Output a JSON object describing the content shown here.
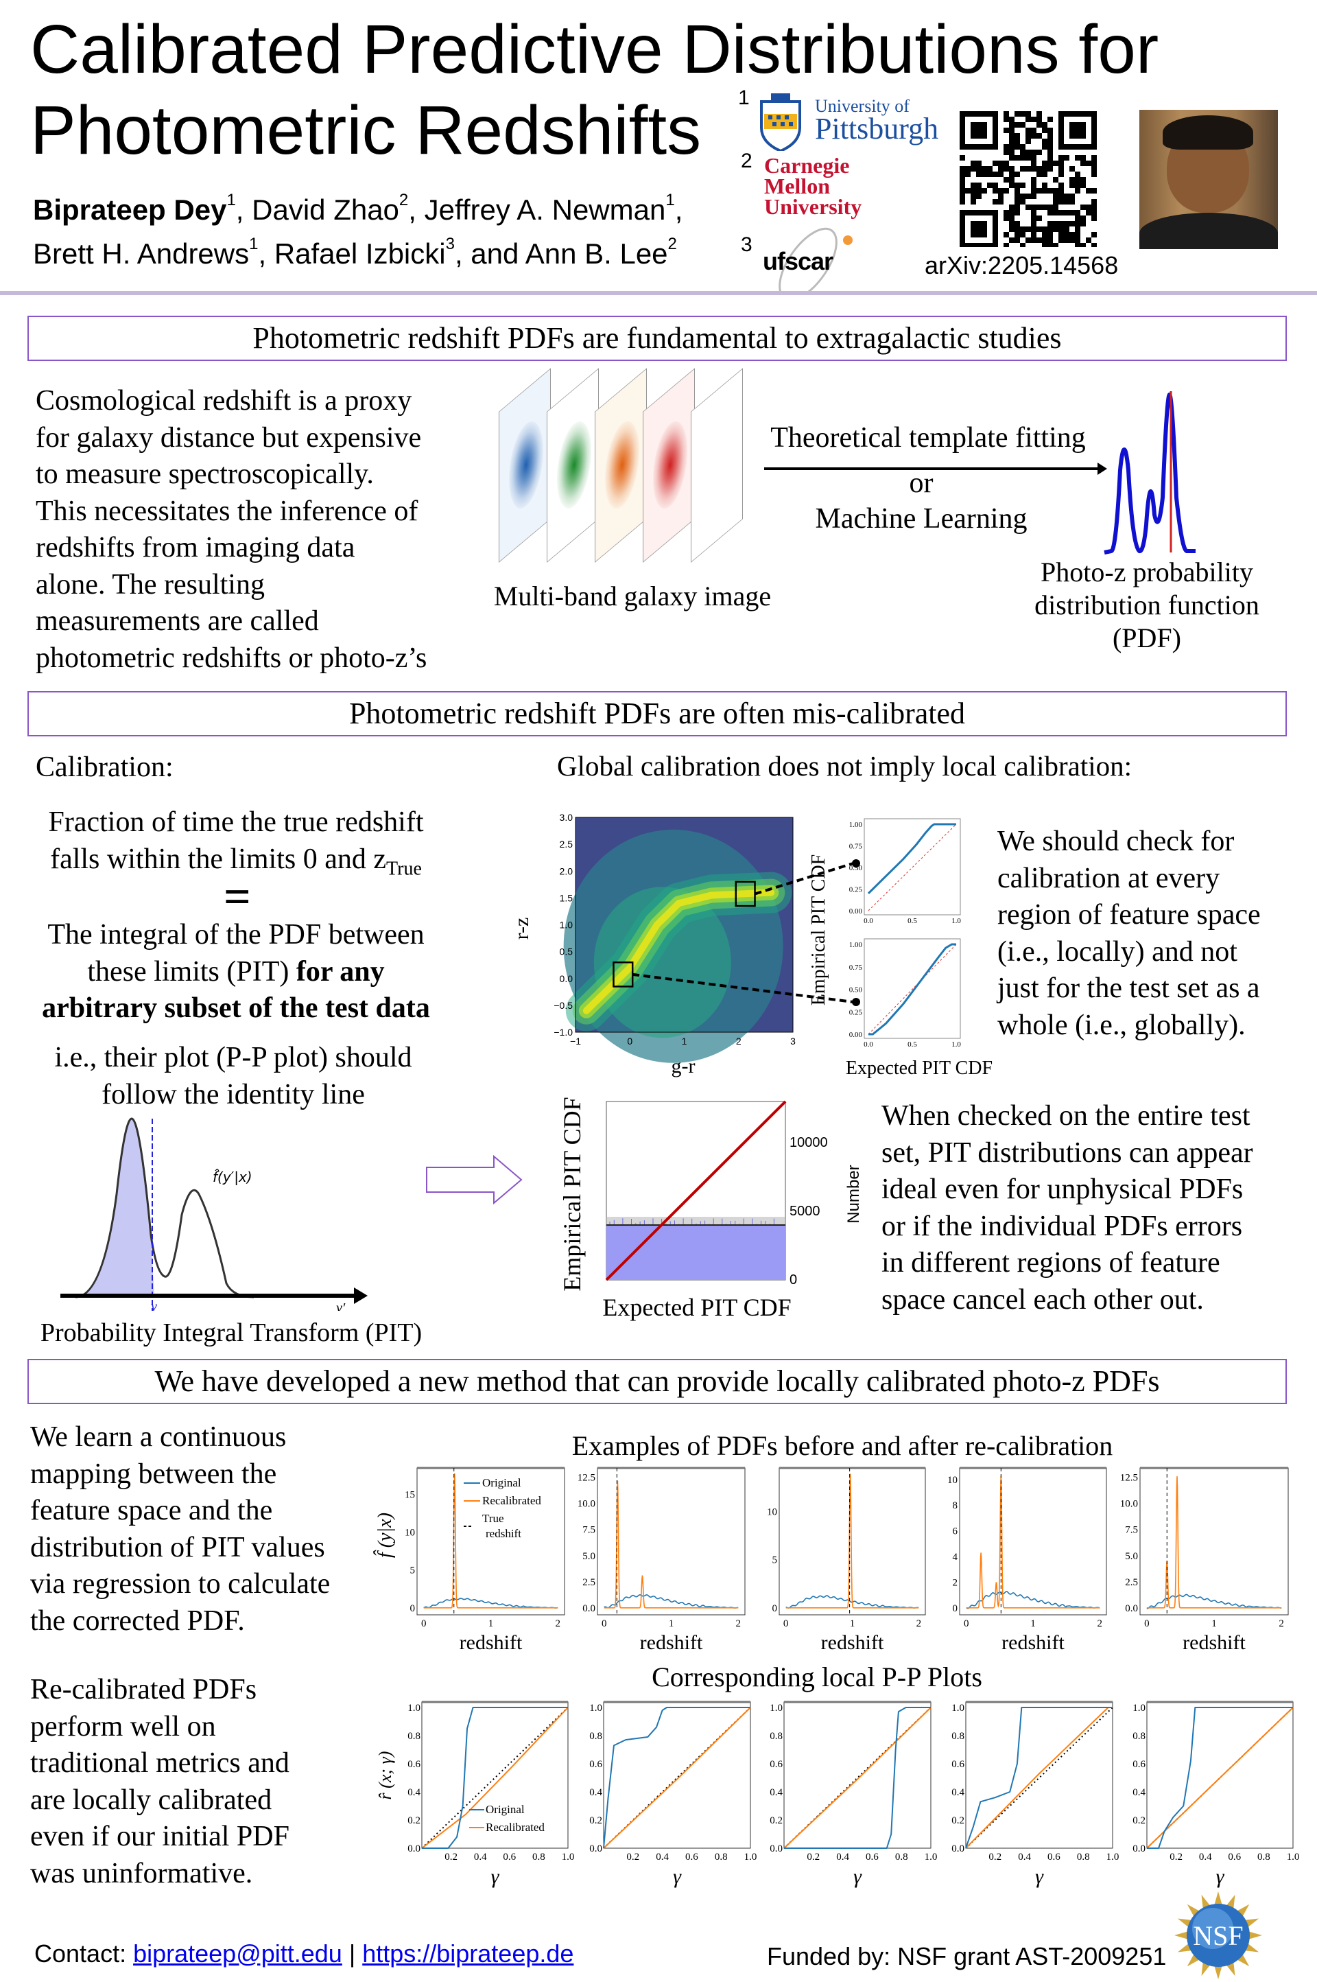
{
  "header": {
    "title_line1": "Calibrated Predictive Distributions for",
    "title_line2": "Photometric Redshifts",
    "authors_line1": [
      {
        "name": "Biprateep Dey",
        "aff": "1",
        "sep": ", "
      },
      {
        "name": "David Zhao",
        "aff": "2",
        "sep": ", "
      },
      {
        "name": "Jeffrey A. Newman",
        "aff": "1",
        "sep": ","
      }
    ],
    "authors_line2": [
      {
        "name": "Brett H. Andrews",
        "aff": "1",
        "sep": ", "
      },
      {
        "name": "Rafael Izbicki",
        "aff": "3",
        "sep": ", and "
      },
      {
        "name": "Ann B. Lee",
        "aff": "2",
        "sep": ""
      }
    ],
    "affiliations": [
      {
        "num": "1",
        "logo_text": [
          "University of",
          "Pittsburgh"
        ]
      },
      {
        "num": "2",
        "logo_text": [
          "Carnegie",
          "Mellon",
          "University"
        ]
      },
      {
        "num": "3",
        "logo_text": [
          "ufscar"
        ]
      }
    ],
    "arxiv": "arXiv:2205.14568",
    "colors": {
      "pitt": "#1c4fa0",
      "cmu": "#c41230",
      "rule": "#c6b8d8",
      "section_border": "#8a55c8"
    }
  },
  "section1": {
    "heading": "Photometric redshift PDFs are fundamental to extragalactic studies",
    "text_lines": [
      "Cosmological redshift is a proxy",
      "for galaxy distance but expensive",
      "to measure spectroscopically.",
      "This necessitates the inference of",
      "redshifts from imaging data",
      "alone. The resulting",
      "measurements are called",
      "photometric redshifts or photo-z’s"
    ],
    "galaxy_caption": "Multi-band galaxy image",
    "method_top": "Theoretical template fitting",
    "method_or": "or",
    "method_bottom": "Machine Learning",
    "pdf_caption": [
      "Photo-z probability",
      "distribution function",
      "(PDF)"
    ]
  },
  "section2": {
    "heading": "Photometric redshift PDFs are often mis-calibrated",
    "calibration_label": "Calibration:",
    "fraction_lines": [
      "Fraction of time the true redshift",
      "falls within the limits 0 and z",
      "True"
    ],
    "equals": "=",
    "integral_lines": [
      "The integral of the PDF between",
      "these limits (PIT) ",
      "for any",
      "arbitrary subset of the test data"
    ],
    "pp_lines": [
      "i.e., their plot (P-P plot) should",
      "follow the identity line"
    ],
    "pit_labels": {
      "fhat": "f̂(y′|x)",
      "y": "y",
      "yprime": "y′"
    },
    "pit_caption": "Probability Integral Transform (PIT)",
    "global_title": "Global calibration does not imply local calibration:",
    "local_text": [
      "We should check for",
      "calibration at every",
      "region of feature space",
      "(i.e., locally) and not",
      "just for the test set as a",
      "whole (i.e., globally)."
    ],
    "global_text": [
      "When checked on the entire test",
      "set, PIT distributions can appear",
      "ideal even for unphysical PDFs",
      "or if the individual PDFs errors",
      "in different regions of feature",
      "space cancel each other out."
    ]
  },
  "section3": {
    "heading": "We have developed a new method that can provide locally calibrated photo-z PDFs",
    "para1": [
      "We learn a continuous",
      "mapping between the",
      "feature space and the",
      "distribution of PIT values",
      "via regression to calculate",
      "the corrected PDF."
    ],
    "para2": [
      "Re-calibrated PDFs",
      "perform well on",
      "traditional metrics and",
      "are locally calibrated",
      "even if our initial PDF",
      "was uninformative."
    ],
    "pdf_title": "Examples of PDFs before and after re-calibration",
    "pp_title": "Corresponding local P-P Plots"
  },
  "footer": {
    "contact_label": "Contact: ",
    "email": "biprateep@pitt.edu",
    "separator": " | ",
    "website": "https://biprateep.de",
    "funding": "Funded by: NSF grant AST-2009251",
    "nsf_logo_text": "NSF"
  },
  "chart_data": [
    {
      "id": "color-density",
      "type": "heatmap",
      "xlabel": "g-r",
      "ylabel": "r-z",
      "xlim": [
        -1,
        3
      ],
      "ylim": [
        -1,
        3
      ],
      "xticks": [
        "−1",
        "0",
        "1",
        "2",
        "3"
      ],
      "yticks": [
        "−1.0",
        "−0.5",
        "0.0",
        "0.5",
        "1.0",
        "1.5",
        "2.0",
        "2.5",
        "3.0"
      ],
      "ridge": [
        [
          -0.8,
          -0.6
        ],
        [
          0.0,
          0.2
        ],
        [
          0.5,
          1.0
        ],
        [
          0.9,
          1.4
        ],
        [
          1.5,
          1.55
        ],
        [
          2.6,
          1.6
        ]
      ],
      "regions": [
        {
          "x": [
            -0.3,
            0.05
          ],
          "y": [
            -0.15,
            0.3
          ]
        },
        {
          "x": [
            1.95,
            2.3
          ],
          "y": [
            1.35,
            1.8
          ]
        }
      ],
      "colors": {
        "low": "#3e4a89",
        "mid": "#21918c",
        "high": "#d8e219"
      }
    },
    {
      "id": "local-pit",
      "type": "line",
      "xlabel": "Expected PIT CDF",
      "ylabel": "Empirical PIT CDF",
      "xticks": [
        "0.0",
        "0.5",
        "1.0"
      ],
      "yticks": [
        "0.00",
        "0.25",
        "0.50",
        "0.75",
        "1.00"
      ],
      "panels": [
        {
          "x": [
            0,
            0.2,
            0.4,
            0.55,
            0.65,
            0.72,
            0.75,
            1.0
          ],
          "y": [
            0.2,
            0.4,
            0.6,
            0.77,
            0.9,
            0.98,
            1.0,
            1.0
          ]
        },
        {
          "x": [
            0,
            0.05,
            0.2,
            0.4,
            0.6,
            0.8,
            0.88,
            0.95,
            1.0
          ],
          "y": [
            0,
            0,
            0.12,
            0.34,
            0.6,
            0.86,
            0.96,
            1.0,
            1.0
          ]
        }
      ]
    },
    {
      "id": "global-pit",
      "type": "bar",
      "xlabel": "Expected PIT CDF",
      "ylabel": "Empirical PIT CDF",
      "y2label": "Number",
      "y2ticks": [
        "0",
        "5000",
        "10000"
      ],
      "y2lim": [
        0,
        13000
      ],
      "histogram_level": 4000,
      "identity_color": "#c00000",
      "hist_color": "#9b9bf5"
    },
    {
      "id": "pdf-examples",
      "type": "line",
      "title": "Examples of PDFs before and after re-calibration",
      "xlabel": "redshift",
      "ylabel": "f̂ (y|x)",
      "xticks": [
        "0",
        "1",
        "2"
      ],
      "legend": [
        "Original",
        "Recalibrated",
        "True",
        "redshift"
      ],
      "colors": {
        "original": "#1f77b4",
        "recalibrated": "#ff7f0e"
      },
      "original_shape": {
        "x": [
          0,
          0.1,
          0.2,
          0.3,
          0.4,
          0.5,
          0.6,
          0.7,
          0.8,
          0.9,
          1.0,
          1.2,
          1.4,
          1.6,
          1.8,
          2.0
        ],
        "y": [
          0,
          0.15,
          0.5,
          0.9,
          1.1,
          1.15,
          1.2,
          1.1,
          0.95,
          0.8,
          0.65,
          0.4,
          0.2,
          0.1,
          0.04,
          0
        ]
      },
      "panels": [
        {
          "true_z": 0.45,
          "ymax": 18.5,
          "yticks": [
            "0",
            "5",
            "10",
            "15"
          ],
          "ytick_vals": [
            0,
            5,
            10,
            15
          ],
          "peaks": [
            [
              0.46,
              17.8
            ]
          ]
        },
        {
          "true_z": 0.19,
          "ymax": 13.4,
          "yticks": [
            "0.0",
            "2.5",
            "5.0",
            "7.5",
            "10.0",
            "12.5"
          ],
          "ytick_vals": [
            0,
            2.5,
            5,
            7.5,
            10,
            12.5
          ],
          "peaks": [
            [
              0.2,
              12.2
            ],
            [
              0.57,
              3.1
            ]
          ]
        },
        {
          "true_z": 0.96,
          "ymax": 14.5,
          "yticks": [
            "0",
            "5",
            "10"
          ],
          "ytick_vals": [
            0,
            5,
            10
          ],
          "peaks": [
            [
              0.97,
              13.9
            ]
          ]
        },
        {
          "true_z": 0.52,
          "ymax": 10.9,
          "yticks": [
            "0",
            "2",
            "4",
            "6",
            "8",
            "10"
          ],
          "ytick_vals": [
            0,
            2,
            4,
            6,
            8,
            10
          ],
          "peaks": [
            [
              0.22,
              4.3
            ],
            [
              0.45,
              2.0
            ],
            [
              0.52,
              10.3
            ]
          ]
        },
        {
          "true_z": 0.3,
          "ymax": 13.4,
          "yticks": [
            "0.0",
            "2.5",
            "5.0",
            "7.5",
            "10.0",
            "12.5"
          ],
          "ytick_vals": [
            0,
            2.5,
            5,
            7.5,
            10,
            12.5
          ],
          "peaks": [
            [
              0.3,
              4.5
            ],
            [
              0.45,
              12.6
            ]
          ]
        }
      ]
    },
    {
      "id": "local-pp",
      "type": "line",
      "title": "Corresponding local P-P Plots",
      "xlabel": "γ",
      "ylabel": "r̂ (x; γ)",
      "xticks": [
        "0.2",
        "0.4",
        "0.6",
        "0.8",
        "1.0"
      ],
      "yticks": [
        "0.0",
        "0.2",
        "0.4",
        "0.6",
        "0.8",
        "1.0"
      ],
      "legend": [
        "Original",
        "Recalibrated"
      ],
      "panels": [
        {
          "original": [
            [
              0,
              0
            ],
            [
              0.18,
              0
            ],
            [
              0.24,
              0.08
            ],
            [
              0.28,
              0.3
            ],
            [
              0.31,
              0.85
            ],
            [
              0.35,
              1
            ],
            [
              1,
              1
            ]
          ],
          "recalibrated": [
            [
              0,
              0
            ],
            [
              0.3,
              0.24
            ],
            [
              0.6,
              0.56
            ],
            [
              1,
              1
            ]
          ]
        },
        {
          "original": [
            [
              0,
              0
            ],
            [
              0.03,
              0.35
            ],
            [
              0.07,
              0.73
            ],
            [
              0.15,
              0.77
            ],
            [
              0.3,
              0.79
            ],
            [
              0.36,
              0.86
            ],
            [
              0.4,
              0.98
            ],
            [
              0.43,
              1
            ],
            [
              1,
              1
            ]
          ],
          "recalibrated": [
            [
              0,
              0
            ],
            [
              0.5,
              0.49
            ],
            [
              1,
              1
            ]
          ]
        },
        {
          "original": [
            [
              0,
              0
            ],
            [
              0.7,
              0
            ],
            [
              0.73,
              0.1
            ],
            [
              0.76,
              0.7
            ],
            [
              0.78,
              0.97
            ],
            [
              0.83,
              1
            ],
            [
              1,
              1
            ]
          ],
          "recalibrated": [
            [
              0,
              0
            ],
            [
              0.5,
              0.49
            ],
            [
              1,
              1
            ]
          ]
        },
        {
          "original": [
            [
              0,
              0
            ],
            [
              0.05,
              0.15
            ],
            [
              0.1,
              0.33
            ],
            [
              0.2,
              0.36
            ],
            [
              0.3,
              0.4
            ],
            [
              0.35,
              0.6
            ],
            [
              0.38,
              1
            ],
            [
              1,
              1
            ]
          ],
          "recalibrated": [
            [
              0,
              0
            ],
            [
              0.5,
              0.53
            ],
            [
              0.97,
              1
            ],
            [
              1,
              1
            ]
          ]
        },
        {
          "original": [
            [
              0,
              0
            ],
            [
              0.08,
              0
            ],
            [
              0.12,
              0.12
            ],
            [
              0.18,
              0.22
            ],
            [
              0.25,
              0.3
            ],
            [
              0.3,
              0.62
            ],
            [
              0.33,
              1
            ],
            [
              1,
              1
            ]
          ],
          "recalibrated": [
            [
              0,
              0
            ],
            [
              0.5,
              0.5
            ],
            [
              1,
              1
            ]
          ]
        }
      ]
    }
  ]
}
